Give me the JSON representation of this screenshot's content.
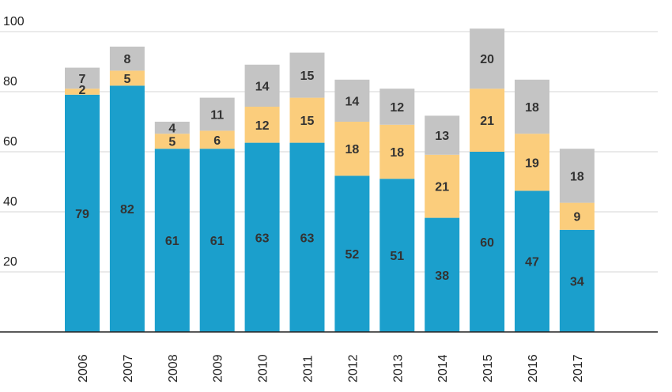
{
  "chart_data": {
    "type": "bar",
    "stacked": true,
    "title": "",
    "xlabel": "",
    "ylabel": "",
    "categories": [
      "2006",
      "2007",
      "2008",
      "2009",
      "2010",
      "2011",
      "2012",
      "2013",
      "2014",
      "2015",
      "2016",
      "2017"
    ],
    "series": [
      {
        "color": "#1b9fcc",
        "values": [
          79,
          82,
          61,
          61,
          63,
          63,
          52,
          51,
          38,
          60,
          47,
          34
        ]
      },
      {
        "color": "#fbcd7c",
        "values": [
          2,
          5,
          5,
          6,
          12,
          15,
          18,
          18,
          21,
          21,
          19,
          9
        ]
      },
      {
        "color": "#c4c4c4",
        "values": [
          7,
          8,
          4,
          11,
          14,
          15,
          14,
          12,
          13,
          20,
          18,
          18
        ]
      }
    ],
    "y_ticks": [
      "20",
      "40",
      "60",
      "80",
      "100"
    ],
    "ylim": [
      0,
      100
    ],
    "grid": true,
    "legend": "none"
  }
}
